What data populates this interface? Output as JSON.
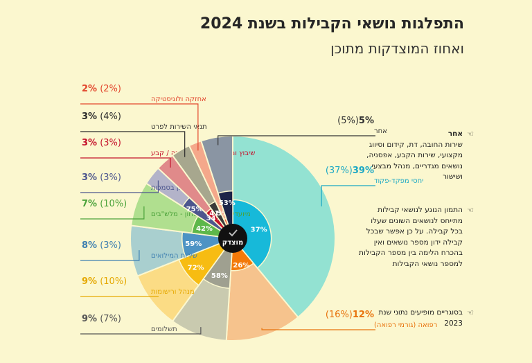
{
  "title": "התפלגות נושאי הקבילות בשנת 2024",
  "subtitle": "ואחוז המוצדקות מתוכן",
  "center_label": "מוצדק",
  "notes": [
    {
      "title": "אחר",
      "text": "שירות החובה, דת, קידום וסיווג מקצועי, שירות הקבע, אפסניה, נושאים מגדריים, מנהל מבצעי ושישור"
    },
    {
      "title": "",
      "text": "התמון הנוגע לנושאי קבילות מתייחס לנושאים השונים שעלו בכל קבילה. על כן אפשר שבכל קבילה ידון מספר נושאים ואין בהכרח הלימה בין מספר הקבילות למספר נושאי הקבילות"
    },
    {
      "title": "",
      "text": "בסוגריים מופיעים נתוני שנת 2023"
    }
  ],
  "chart_data": {
    "type": "pie",
    "title": "התפלגות נושאי הקבילות בשנת 2024",
    "subtitle": "ואחוז המוצדקות מתוכן",
    "outer_unit": "%",
    "inner_label": "מוצדק",
    "slices": [
      {
        "label": "יחסי מפקד-פקוד",
        "value": 39,
        "prev": "(37%)",
        "justified": 37,
        "color": "#93e2d2",
        "inner_color": "#17b9d9",
        "label_color": "#1aa7c4"
      },
      {
        "label": "רפואה (גורמי רפואה)",
        "value": 12,
        "prev": "(16%)",
        "justified": 26,
        "color": "#f6c38d",
        "inner_color": "#f37a09",
        "label_color": "#e8720c"
      },
      {
        "label": "תשלומים",
        "value": 9,
        "prev": "(7%)",
        "justified": 58,
        "color": "#c9caaf",
        "inner_color": "#9fa090",
        "label_color": "#555555"
      },
      {
        "label": "מנהל ורישומות",
        "value": 9,
        "prev": "(10%)",
        "justified": 72,
        "color": "#fbdc85",
        "inner_color": "#f7bc12",
        "label_color": "#e5a800"
      },
      {
        "label": "שירות המילואים",
        "value": 8,
        "prev": "(3%)",
        "justified": 59,
        "color": "#a9cfcf",
        "inner_color": "#4d93c4",
        "label_color": "#3d7fb0"
      },
      {
        "label": "מיועדים לשירות ביטחון - מלש\"בים",
        "value": 7,
        "prev": "(10%)",
        "justified": 42,
        "color": "#b0df8f",
        "inner_color": "#5db74a",
        "label_color": "#4ba23a"
      },
      {
        "label": "פניות שאינן בסמכות",
        "value": 3,
        "prev": "(3%)",
        "justified": 75,
        "color": "#b3b3c9",
        "inner_color": "#4d568e",
        "label_color": "#4d568e"
      },
      {
        "label": "שיבוץ ומוגבלות שיבוץ - חובה / קבע",
        "value": 3,
        "prev": "(3%)",
        "justified": 34,
        "color": "#e08a8a",
        "inner_color": "#c4122b",
        "label_color": "#c4122b"
      },
      {
        "label": "תנאי השירות לפרט",
        "value": 3,
        "prev": "(4%)",
        "justified": 41,
        "color": "#a7a78e",
        "inner_color": "#3a3a3a",
        "label_color": "#2b2b2b"
      },
      {
        "label": "אחזקה ולוגיסטיקה",
        "value": 2,
        "prev": "(2%)",
        "justified": 5,
        "color": "#f4a88b",
        "inner_color": "#ef5f3c",
        "label_color": "#e2452c"
      },
      {
        "label": "אחר",
        "value": 5,
        "prev": "(5%)",
        "justified": 53,
        "color": "#8a95a3",
        "inner_color": "#1d2448",
        "label_color": "#333333"
      }
    ]
  }
}
